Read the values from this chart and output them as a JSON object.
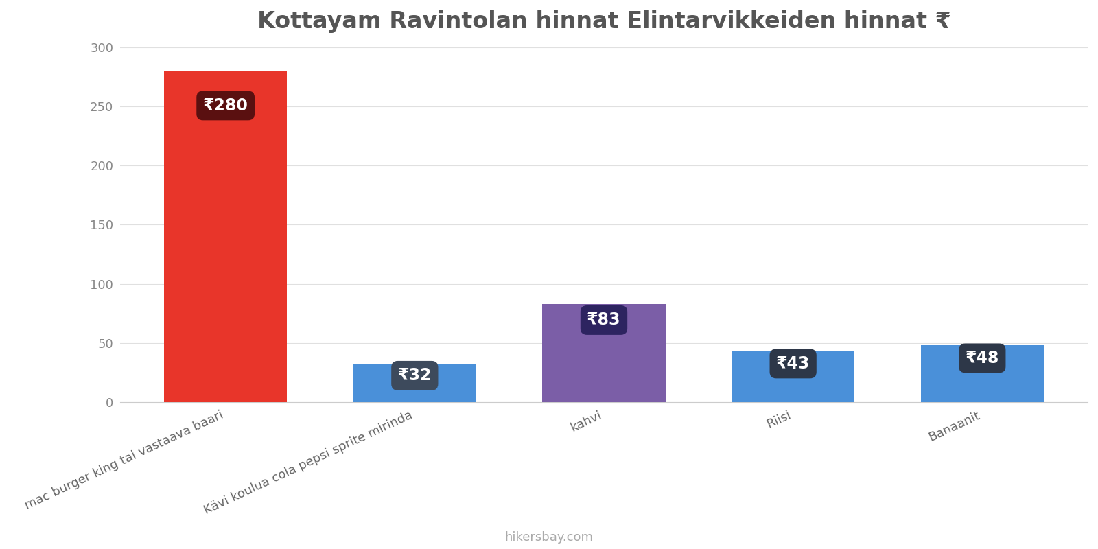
{
  "title": "Kottayam Ravintolan hinnat Elintarvikkeiden hinnat ₹",
  "categories": [
    "mac burger king tai vastaava baari",
    "Kävi koulua cola pepsi sprite mirinda",
    "kahvi",
    "Riisi",
    "Banaanit"
  ],
  "values": [
    280,
    32,
    83,
    43,
    48
  ],
  "bar_colors": [
    "#e8352a",
    "#4a90d9",
    "#7b5ea7",
    "#4a90d9",
    "#4a90d9"
  ],
  "label_bg_colors": [
    "#5a1010",
    "#3d4a5c",
    "#2d2460",
    "#2d3748",
    "#2d3748"
  ],
  "ylim": [
    0,
    300
  ],
  "yticks": [
    0,
    50,
    100,
    150,
    200,
    250,
    300
  ],
  "footer": "hikersbay.com",
  "background_color": "#ffffff",
  "label_text_color": "#ffffff",
  "title_color": "#555555",
  "label_fontsize": 17,
  "title_fontsize": 24,
  "bar_width": 0.65
}
